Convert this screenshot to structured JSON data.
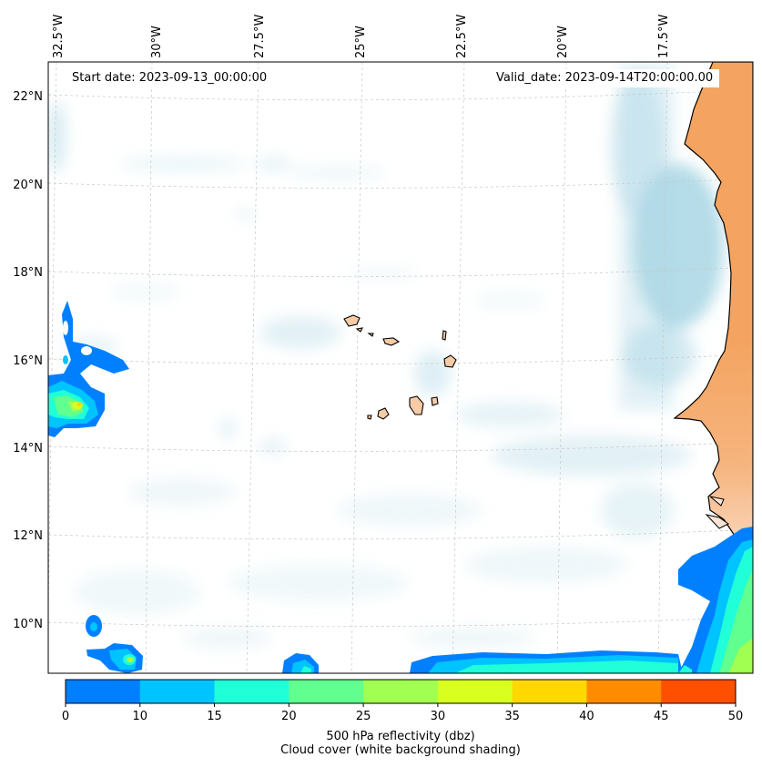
{
  "map": {
    "start_date_text": "Start date: 2023-09-13_00:00:00",
    "valid_date_text": "Valid_date: 2023-09-14T20:00:00.00",
    "lon_labels": [
      "32.5°W",
      "30°W",
      "27.5°W",
      "25°W",
      "22.5°W",
      "20°W",
      "17.5°W"
    ],
    "lat_labels": [
      "22°N",
      "20°N",
      "18°N",
      "16°N",
      "14°N",
      "12°N",
      "10°N"
    ],
    "land_color": "#f4a460",
    "cloud_color": "#add8e6",
    "gridlines": true
  },
  "colorbar": {
    "ticks": [
      "0",
      "10",
      "15",
      "20",
      "25",
      "30",
      "35",
      "40",
      "45",
      "50"
    ],
    "colors": [
      "#0080ff",
      "#00c4ff",
      "#20ffd8",
      "#60ff90",
      "#a0ff50",
      "#d8ff20",
      "#ffd800",
      "#ff8c00",
      "#ff5000"
    ],
    "label_line1": "500 hPa reflectivity (dbz)",
    "label_line2": "Cloud cover (white background shading)"
  }
}
